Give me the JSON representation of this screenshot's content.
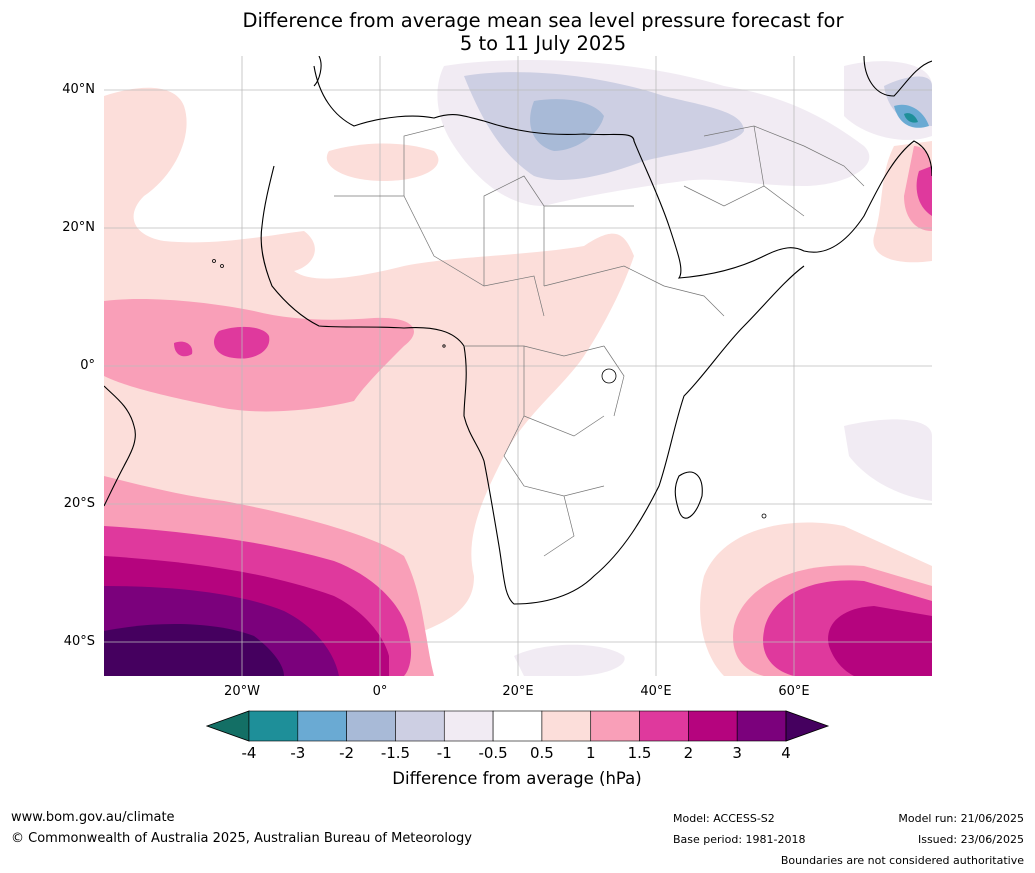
{
  "title": {
    "line1": "Difference from average mean sea level pressure forecast for",
    "line2": "5 to 11 July 2025"
  },
  "map": {
    "lat_labels": [
      "40°N",
      "20°N",
      "0°",
      "20°S",
      "40°S"
    ],
    "lon_labels": [
      "20°W",
      "0°",
      "20°E",
      "40°E",
      "60°E"
    ],
    "grid": true,
    "lat_range": [
      -45,
      45
    ],
    "lon_range": [
      -40,
      80
    ]
  },
  "colorbar": {
    "ticks": [
      "-4",
      "-3",
      "-2",
      "-1.5",
      "-1",
      "-0.5",
      "0.5",
      "1",
      "1.5",
      "2",
      "3",
      "4"
    ],
    "colors": {
      "below_min": "#136f65",
      "bins": [
        "#1e8f99",
        "#6aaad3",
        "#a8bad7",
        "#cdcfe3",
        "#f1ebf3",
        "#ffffff",
        "#fcdeda",
        "#f99fb8",
        "#df399d",
        "#b5047e",
        "#7b017c"
      ],
      "above_max": "#45005f"
    },
    "label": "Difference from average (hPa)"
  },
  "footer": {
    "website": "www.bom.gov.au/climate",
    "copyright": "© Commonwealth of Australia 2025, Australian Bureau of Meteorology",
    "model": "Model: ACCESS-S2",
    "base_period": "Base period: 1981-2018",
    "model_run": "Model run: 21/06/2025",
    "issued": "Issued: 23/06/2025",
    "disclaimer": "Boundaries are not considered authoritative"
  }
}
